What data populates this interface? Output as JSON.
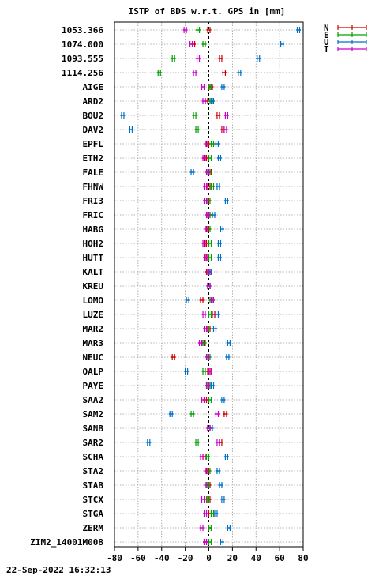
{
  "chart_data": {
    "type": "scatter",
    "title": "ISTP of BDS w.r.t. GPS in [mm]",
    "xlim": [
      -80,
      80
    ],
    "x_ticks": [
      -80,
      -60,
      -40,
      -20,
      0,
      20,
      40,
      60,
      80
    ],
    "x_tick_labels": [
      "-80",
      "-60",
      "-40",
      "-20",
      "0",
      "20",
      "40",
      "60",
      "80"
    ],
    "grid": true,
    "legend_position": "top-right (outside plot)",
    "footer": "22-Sep-2022 16:32:13",
    "stations": [
      "1053.366",
      "1074.000",
      "1093.555",
      "1114.256",
      "AIGE",
      "ARD2",
      "BOU2",
      "DAV2",
      "EPFL",
      "ETH2",
      "FALE",
      "FHNW",
      "FRI3",
      "FRIC",
      "HABG",
      "HOH2",
      "HUTT",
      "KALT",
      "KREU",
      "LOMO",
      "LUZE",
      "MAR2",
      "MAR3",
      "NEUC",
      "OALP",
      "PAYE",
      "SAA2",
      "SAM2",
      "SANB",
      "SAR2",
      "SCHA",
      "STA2",
      "STAB",
      "STCX",
      "STGA",
      "ZERM",
      "ZIM2_14001M008"
    ],
    "series": [
      {
        "name": "N",
        "color": "#cc0000",
        "values": [
          0,
          -13,
          10,
          13,
          2,
          -2,
          8,
          12,
          -1,
          -3,
          1,
          0,
          -1,
          0,
          -1,
          -3,
          -2,
          -1,
          0,
          -6,
          4,
          0,
          -5,
          -30,
          0,
          -1,
          -3,
          14,
          0,
          10,
          -4,
          -1,
          0,
          0,
          1,
          1,
          -3
        ]
      },
      {
        "name": "E",
        "color": "#00a000",
        "values": [
          -9,
          -4,
          -30,
          -42,
          1,
          2,
          -12,
          -10,
          3,
          1,
          0,
          3,
          0,
          2,
          0,
          1,
          1,
          0,
          0,
          2,
          1,
          -1,
          -4,
          0,
          -4,
          0,
          1,
          -14,
          0,
          -10,
          -1,
          0,
          -1,
          -1,
          3,
          1,
          1
        ]
      },
      {
        "name": "U",
        "color": "#0070c8",
        "values": [
          76,
          62,
          42,
          26,
          12,
          3,
          -73,
          -66,
          7,
          9,
          -14,
          8,
          15,
          4,
          11,
          9,
          9,
          1,
          0,
          -18,
          7,
          5,
          17,
          16,
          -19,
          3,
          12,
          -32,
          2,
          -51,
          15,
          8,
          10,
          12,
          6,
          17,
          11
        ]
      },
      {
        "name": "T",
        "color": "#cc00cc",
        "values": [
          -20,
          -15,
          -9,
          -12,
          -5,
          -4,
          15,
          14,
          -2,
          -4,
          -1,
          -3,
          -3,
          -1,
          -2,
          -4,
          -3,
          0,
          0,
          3,
          -4,
          -3,
          -7,
          -1,
          1,
          -1,
          -5,
          7,
          0,
          8,
          -6,
          -2,
          -2,
          -5,
          -3,
          -6,
          -3
        ]
      }
    ]
  }
}
